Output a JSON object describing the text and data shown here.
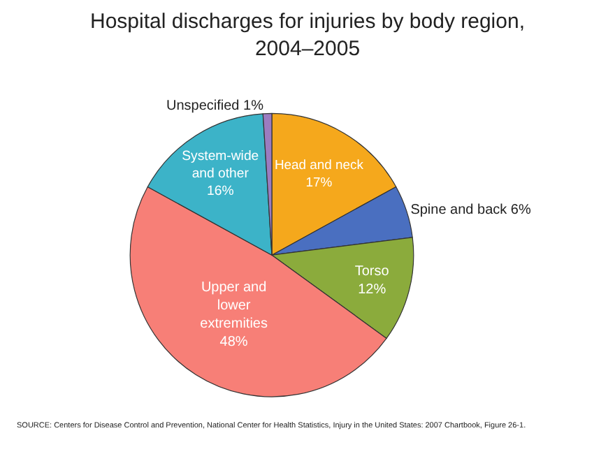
{
  "chart_data": {
    "type": "pie",
    "title": "Hospital discharges for injuries by body region, 2004–2005",
    "categories": [
      "Head and neck",
      "Spine and back",
      "Torso",
      "Upper and lower extremities",
      "System-wide and other",
      "Unspecified"
    ],
    "values": [
      17,
      6,
      12,
      48,
      16,
      1
    ],
    "value_labels": [
      "17%",
      "6%",
      "12%",
      "48%",
      "16%",
      "1%"
    ],
    "colors": [
      "#f5a81c",
      "#4a6fc0",
      "#8bab3c",
      "#f77f77",
      "#3cb3c8",
      "#9b7cc0"
    ],
    "annotations": [
      "SOURCE: Centers for Disease Control and Prevention, National Center for Health Statistics, Injury in the United States: 2007 Chartbook, Figure 26-1."
    ]
  }
}
